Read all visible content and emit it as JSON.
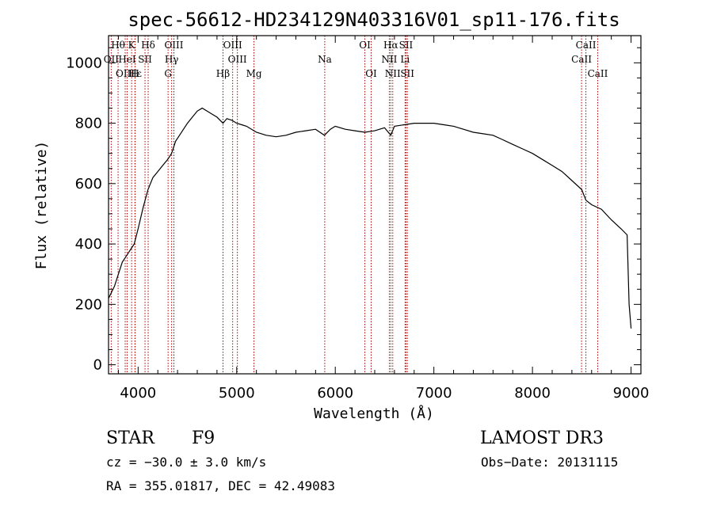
{
  "chart_data": {
    "type": "line",
    "title": "spec-56612-HD234129N403316V01_sp11-176.fits",
    "xlabel": "Wavelength (Å)",
    "ylabel": "Flux (relative)",
    "xlim": [
      3700,
      9100
    ],
    "ylim": [
      -30,
      1090
    ],
    "xticks": [
      4000,
      5000,
      6000,
      7000,
      8000,
      9000
    ],
    "yticks": [
      0,
      200,
      400,
      600,
      800,
      1000
    ],
    "series": [
      {
        "name": "spectrum",
        "x": [
          3700,
          3760,
          3800,
          3840,
          3880,
          3920,
          3960,
          4000,
          4050,
          4100,
          4150,
          4200,
          4250,
          4300,
          4340,
          4380,
          4420,
          4460,
          4500,
          4550,
          4600,
          4650,
          4700,
          4750,
          4800,
          4861,
          4900,
          4950,
          5000,
          5050,
          5100,
          5200,
          5300,
          5400,
          5500,
          5600,
          5700,
          5800,
          5890,
          5950,
          6000,
          6100,
          6200,
          6300,
          6400,
          6500,
          6563,
          6600,
          6700,
          6800,
          6900,
          7000,
          7100,
          7200,
          7300,
          7400,
          7500,
          7600,
          7700,
          7800,
          7900,
          8000,
          8100,
          8200,
          8300,
          8400,
          8500,
          8542,
          8600,
          8700,
          8800,
          8900,
          8960,
          8980,
          9000
        ],
        "y": [
          220,
          260,
          300,
          340,
          360,
          380,
          400,
          450,
          520,
          580,
          620,
          640,
          660,
          680,
          700,
          740,
          760,
          780,
          800,
          820,
          840,
          850,
          840,
          830,
          820,
          800,
          815,
          810,
          800,
          795,
          790,
          770,
          760,
          755,
          760,
          770,
          775,
          780,
          760,
          780,
          790,
          780,
          775,
          770,
          775,
          785,
          760,
          790,
          795,
          800,
          800,
          800,
          795,
          790,
          780,
          770,
          765,
          760,
          745,
          730,
          715,
          700,
          680,
          660,
          640,
          610,
          580,
          545,
          530,
          515,
          480,
          450,
          430,
          200,
          120
        ]
      }
    ],
    "spectral_lines": [
      {
        "label": "Hθ",
        "wavelength": 3797,
        "row": 0
      },
      {
        "label": "K",
        "wavelength": 3934,
        "row": 0
      },
      {
        "label": "Hδ",
        "wavelength": 4102,
        "row": 0
      },
      {
        "label": "OIII",
        "wavelength": 4363,
        "row": 0
      },
      {
        "label": "OIII",
        "wavelength": 4959,
        "row": 0
      },
      {
        "label": "OII",
        "wavelength": 3727,
        "row": 1
      },
      {
        "label": "HeI",
        "wavelength": 3889,
        "row": 1
      },
      {
        "label": "SII",
        "wavelength": 4070,
        "row": 1
      },
      {
        "label": "Hγ",
        "wavelength": 4340,
        "row": 1
      },
      {
        "label": "OIII",
        "wavelength": 5007,
        "row": 1
      },
      {
        "label": "OIII",
        "wavelength": 3869,
        "row": 2
      },
      {
        "label": "Hε",
        "wavelength": 3970,
        "row": 2
      },
      {
        "label": "H",
        "wavelength": 3968,
        "row": 2
      },
      {
        "label": "G",
        "wavelength": 4304,
        "row": 2
      },
      {
        "label": "Hβ",
        "wavelength": 4861,
        "row": 2
      },
      {
        "label": "Mg",
        "wavelength": 5175,
        "row": 2
      },
      {
        "label": "Na",
        "wavelength": 5893,
        "row": 1
      },
      {
        "label": "OI",
        "wavelength": 6300,
        "row": 0
      },
      {
        "label": "OI",
        "wavelength": 6364,
        "row": 2
      },
      {
        "label": "Hα",
        "wavelength": 6563,
        "row": 0
      },
      {
        "label": "SII",
        "wavelength": 6717,
        "row": 0
      },
      {
        "label": "NII",
        "wavelength": 6548,
        "row": 1
      },
      {
        "label": "Li",
        "wavelength": 6708,
        "row": 1
      },
      {
        "label": "NII",
        "wavelength": 6583,
        "row": 2
      },
      {
        "label": "SII",
        "wavelength": 6731,
        "row": 2
      },
      {
        "label": "CaII",
        "wavelength": 8542,
        "row": 0
      },
      {
        "label": "CaII",
        "wavelength": 8498,
        "row": 1
      },
      {
        "label": "CaII",
        "wavelength": 8662,
        "row": 2
      }
    ],
    "line_color": "#000000",
    "marker_color": "#b00000"
  },
  "info": {
    "object_class": "STAR",
    "subclass": "F9",
    "survey": "LAMOST DR3",
    "cz": "cz = −30.0 ± 3.0 km/s",
    "obs_date": "Obs−Date: 20131115",
    "coords": "RA = 355.01817, DEC =  42.49083"
  }
}
